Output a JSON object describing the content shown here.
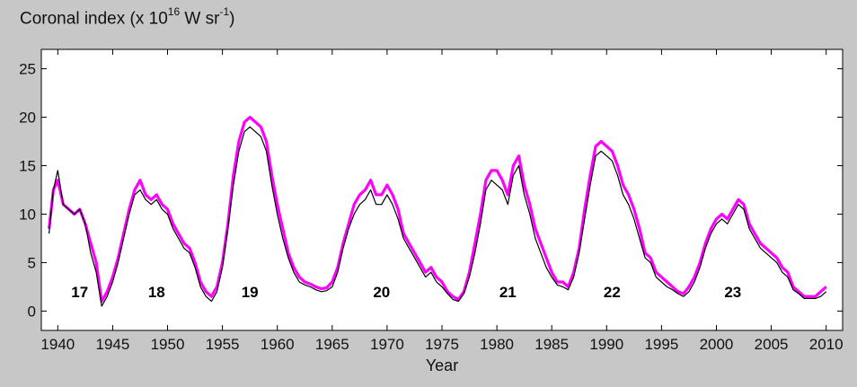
{
  "chart_data": {
    "type": "line",
    "title_parts": {
      "prefix": "Coronal index (x 10",
      "exp1": "16",
      "mid": " W sr",
      "exp2": "-1",
      "suffix": ")"
    },
    "xlabel": "Year",
    "ylabel": "",
    "xlim": [
      1938.5,
      2011.5
    ],
    "ylim": [
      -2,
      27
    ],
    "xticks": [
      1940,
      1945,
      1950,
      1955,
      1960,
      1965,
      1970,
      1975,
      1980,
      1985,
      1990,
      1995,
      2000,
      2005,
      2010
    ],
    "yticks": [
      0,
      5,
      10,
      15,
      20,
      25
    ],
    "grid": false,
    "series": [
      {
        "color": "#ff00ff",
        "style": "daily values (high-frequency envelope)",
        "x": [
          1939.2,
          1939.6,
          1940.0,
          1940.5,
          1941.0,
          1941.5,
          1942.0,
          1942.5,
          1943.0,
          1943.5,
          1944.0,
          1944.5,
          1945.0,
          1945.5,
          1946.0,
          1946.5,
          1947.0,
          1947.5,
          1948.0,
          1948.5,
          1949.0,
          1949.5,
          1950.0,
          1950.5,
          1951.0,
          1951.5,
          1952.0,
          1952.5,
          1953.0,
          1953.5,
          1954.0,
          1954.5,
          1955.0,
          1955.5,
          1956.0,
          1956.5,
          1957.0,
          1957.5,
          1958.0,
          1958.5,
          1959.0,
          1959.5,
          1960.0,
          1960.5,
          1961.0,
          1961.5,
          1962.0,
          1962.5,
          1963.0,
          1963.5,
          1964.0,
          1964.5,
          1965.0,
          1965.5,
          1966.0,
          1966.5,
          1967.0,
          1967.5,
          1968.0,
          1968.5,
          1969.0,
          1969.5,
          1970.0,
          1970.5,
          1971.0,
          1971.5,
          1972.0,
          1972.5,
          1973.0,
          1973.5,
          1974.0,
          1974.5,
          1975.0,
          1975.5,
          1976.0,
          1976.5,
          1977.0,
          1977.5,
          1978.0,
          1978.5,
          1979.0,
          1979.5,
          1980.0,
          1980.5,
          1981.0,
          1981.5,
          1982.0,
          1982.5,
          1983.0,
          1983.5,
          1984.0,
          1984.5,
          1985.0,
          1985.5,
          1986.0,
          1986.5,
          1987.0,
          1987.5,
          1988.0,
          1988.5,
          1989.0,
          1989.5,
          1990.0,
          1990.5,
          1991.0,
          1991.5,
          1992.0,
          1992.5,
          1993.0,
          1993.5,
          1994.0,
          1994.5,
          1995.0,
          1995.5,
          1996.0,
          1996.5,
          1997.0,
          1997.5,
          1998.0,
          1998.5,
          1999.0,
          1999.5,
          2000.0,
          2000.5,
          2001.0,
          2001.5,
          2002.0,
          2002.5,
          2003.0,
          2003.5,
          2004.0,
          2004.5,
          2005.0,
          2005.5,
          2006.0,
          2006.5,
          2007.0,
          2007.5,
          2008.0,
          2008.5,
          2009.0,
          2009.5,
          2010.0
        ],
        "y": [
          8.5,
          12.5,
          13.5,
          11.0,
          10.5,
          10.0,
          10.5,
          9.0,
          7.0,
          5.0,
          1.0,
          2.0,
          3.5,
          5.5,
          8.0,
          10.5,
          12.5,
          13.5,
          12.0,
          11.5,
          12.0,
          11.0,
          10.5,
          9.0,
          8.0,
          7.0,
          6.5,
          5.0,
          3.0,
          2.0,
          1.5,
          2.5,
          5.0,
          9.0,
          14.0,
          17.5,
          19.5,
          20.0,
          19.5,
          19.0,
          17.5,
          14.0,
          11.0,
          8.5,
          6.0,
          4.5,
          3.5,
          3.0,
          2.8,
          2.5,
          2.3,
          2.4,
          3.0,
          4.5,
          7.0,
          9.0,
          11.0,
          12.0,
          12.5,
          13.5,
          12.0,
          12.0,
          13.0,
          12.0,
          10.5,
          8.0,
          7.0,
          6.0,
          5.0,
          4.0,
          4.5,
          3.5,
          3.0,
          2.0,
          1.5,
          1.2,
          2.0,
          4.0,
          7.0,
          10.0,
          13.5,
          14.5,
          14.5,
          13.5,
          12.0,
          15.0,
          16.0,
          13.0,
          11.0,
          8.5,
          7.0,
          5.5,
          4.0,
          3.0,
          3.0,
          2.5,
          4.0,
          6.5,
          10.5,
          14.0,
          17.0,
          17.5,
          17.0,
          16.5,
          15.0,
          13.0,
          12.0,
          10.5,
          8.5,
          6.0,
          5.5,
          4.0,
          3.5,
          3.0,
          2.5,
          2.0,
          1.8,
          2.5,
          3.5,
          5.0,
          7.0,
          8.5,
          9.5,
          10.0,
          9.5,
          10.5,
          11.5,
          11.0,
          9.0,
          8.0,
          7.0,
          6.5,
          6.0,
          5.5,
          4.5,
          4.0,
          2.5,
          2.0,
          1.5,
          1.5,
          1.5,
          2.0,
          2.5
        ]
      },
      {
        "color": "#000000",
        "style": "smoothed values",
        "x": [
          1939.2,
          1939.6,
          1940.0,
          1940.5,
          1941.0,
          1941.5,
          1942.0,
          1942.5,
          1943.0,
          1943.5,
          1944.0,
          1944.5,
          1945.0,
          1945.5,
          1946.0,
          1946.5,
          1947.0,
          1947.5,
          1948.0,
          1948.5,
          1949.0,
          1949.5,
          1950.0,
          1950.5,
          1951.0,
          1951.5,
          1952.0,
          1952.5,
          1953.0,
          1953.5,
          1954.0,
          1954.5,
          1955.0,
          1955.5,
          1956.0,
          1956.5,
          1957.0,
          1957.5,
          1958.0,
          1958.5,
          1959.0,
          1959.5,
          1960.0,
          1960.5,
          1961.0,
          1961.5,
          1962.0,
          1962.5,
          1963.0,
          1963.5,
          1964.0,
          1964.5,
          1965.0,
          1965.5,
          1966.0,
          1966.5,
          1967.0,
          1967.5,
          1968.0,
          1968.5,
          1969.0,
          1969.5,
          1970.0,
          1970.5,
          1971.0,
          1971.5,
          1972.0,
          1972.5,
          1973.0,
          1973.5,
          1974.0,
          1974.5,
          1975.0,
          1975.5,
          1976.0,
          1976.5,
          1977.0,
          1977.5,
          1978.0,
          1978.5,
          1979.0,
          1979.5,
          1980.0,
          1980.5,
          1981.0,
          1981.5,
          1982.0,
          1982.5,
          1983.0,
          1983.5,
          1984.0,
          1984.5,
          1985.0,
          1985.5,
          1986.0,
          1986.5,
          1987.0,
          1987.5,
          1988.0,
          1988.5,
          1989.0,
          1989.5,
          1990.0,
          1990.5,
          1991.0,
          1991.5,
          1992.0,
          1992.5,
          1993.0,
          1993.5,
          1994.0,
          1994.5,
          1995.0,
          1995.5,
          1996.0,
          1996.5,
          1997.0,
          1997.5,
          1998.0,
          1998.5,
          1999.0,
          1999.5,
          2000.0,
          2000.5,
          2001.0,
          2001.5,
          2002.0,
          2002.5,
          2003.0,
          2003.5,
          2004.0,
          2004.5,
          2005.0,
          2005.5,
          2006.0,
          2006.5,
          2007.0,
          2007.5,
          2008.0,
          2008.5,
          2009.0,
          2009.5,
          2010.0
        ],
        "y": [
          8.0,
          12.5,
          14.5,
          11.0,
          10.5,
          10.0,
          10.5,
          9.0,
          6.0,
          4.0,
          0.5,
          1.5,
          3.0,
          5.0,
          7.5,
          10.0,
          12.0,
          12.5,
          11.5,
          11.0,
          11.5,
          10.5,
          10.0,
          8.5,
          7.5,
          6.5,
          6.0,
          4.5,
          2.5,
          1.5,
          1.0,
          2.0,
          4.5,
          8.5,
          13.0,
          16.5,
          18.5,
          19.0,
          18.5,
          18.0,
          16.5,
          13.0,
          10.0,
          7.5,
          5.5,
          4.0,
          3.0,
          2.7,
          2.5,
          2.2,
          2.0,
          2.1,
          2.5,
          4.0,
          6.5,
          8.5,
          10.0,
          11.0,
          11.5,
          12.5,
          11.0,
          11.0,
          12.0,
          11.0,
          9.5,
          7.5,
          6.5,
          5.5,
          4.5,
          3.5,
          4.0,
          3.0,
          2.5,
          1.8,
          1.2,
          1.0,
          1.8,
          3.5,
          6.0,
          9.0,
          12.5,
          13.5,
          13.0,
          12.5,
          11.0,
          14.0,
          15.0,
          12.0,
          10.0,
          7.5,
          6.0,
          4.5,
          3.5,
          2.7,
          2.5,
          2.2,
          3.5,
          6.0,
          9.5,
          13.0,
          16.0,
          16.5,
          16.0,
          15.5,
          14.0,
          12.0,
          11.0,
          9.5,
          7.5,
          5.5,
          5.0,
          3.5,
          3.0,
          2.5,
          2.2,
          1.8,
          1.5,
          2.0,
          3.0,
          4.5,
          6.5,
          8.0,
          9.0,
          9.5,
          9.0,
          10.0,
          11.0,
          10.5,
          8.5,
          7.5,
          6.5,
          6.0,
          5.5,
          5.0,
          4.0,
          3.5,
          2.2,
          1.8,
          1.3,
          1.3,
          1.3,
          1.5,
          2.0
        ]
      }
    ],
    "annotations": [
      {
        "text": "17",
        "x": 1942.0,
        "y": 2.0
      },
      {
        "text": "18",
        "x": 1949.0,
        "y": 2.0
      },
      {
        "text": "19",
        "x": 1957.5,
        "y": 2.0
      },
      {
        "text": "20",
        "x": 1969.5,
        "y": 2.0
      },
      {
        "text": "21",
        "x": 1981.0,
        "y": 2.0
      },
      {
        "text": "22",
        "x": 1990.5,
        "y": 2.0
      },
      {
        "text": "23",
        "x": 2001.5,
        "y": 2.0
      }
    ]
  }
}
